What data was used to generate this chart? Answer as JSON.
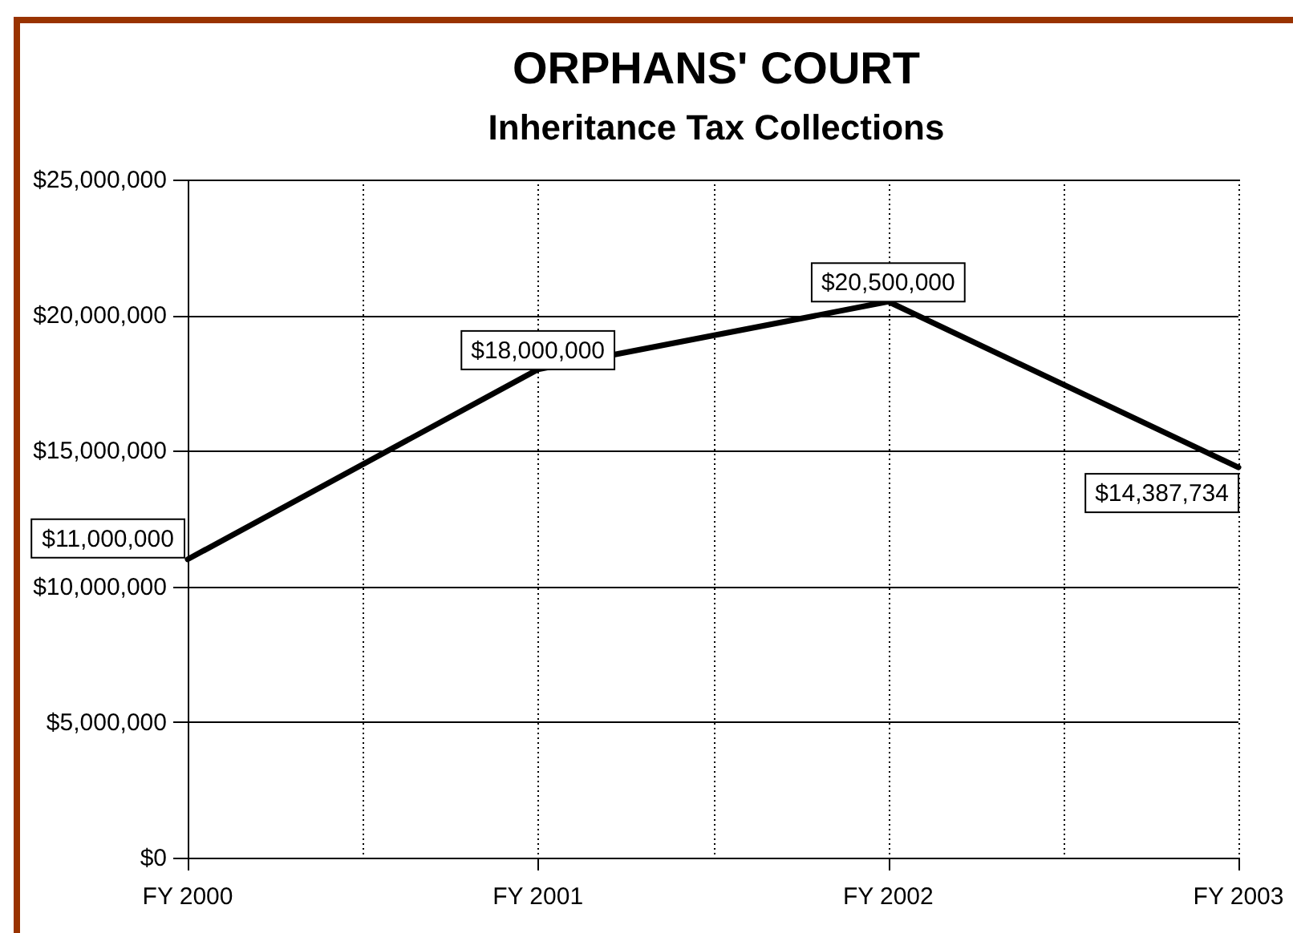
{
  "chart_data": {
    "type": "line",
    "title": "ORPHANS' COURT",
    "subtitle": "Inheritance Tax Collections",
    "categories": [
      "FY 2000",
      "FY 2001",
      "FY 2002",
      "FY 2003"
    ],
    "series": [
      {
        "color": "#000000",
        "values": [
          11000000,
          18000000,
          20500000,
          14387734
        ],
        "value_labels": [
          "$11,000,000",
          "$18,000,000",
          "$20,500,000",
          "$14,387,734"
        ]
      }
    ],
    "ylim": [
      0,
      25000000
    ],
    "yticks": [
      {
        "value": 0,
        "label": "$0"
      },
      {
        "value": 5000000,
        "label": "$5,000,000"
      },
      {
        "value": 10000000,
        "label": "$10,000,000"
      },
      {
        "value": 15000000,
        "label": "$15,000,000"
      },
      {
        "value": 20000000,
        "label": "$20,000,000"
      },
      {
        "value": 25000000,
        "label": "$25,000,000"
      }
    ],
    "grid": true,
    "line_style": "solid"
  }
}
